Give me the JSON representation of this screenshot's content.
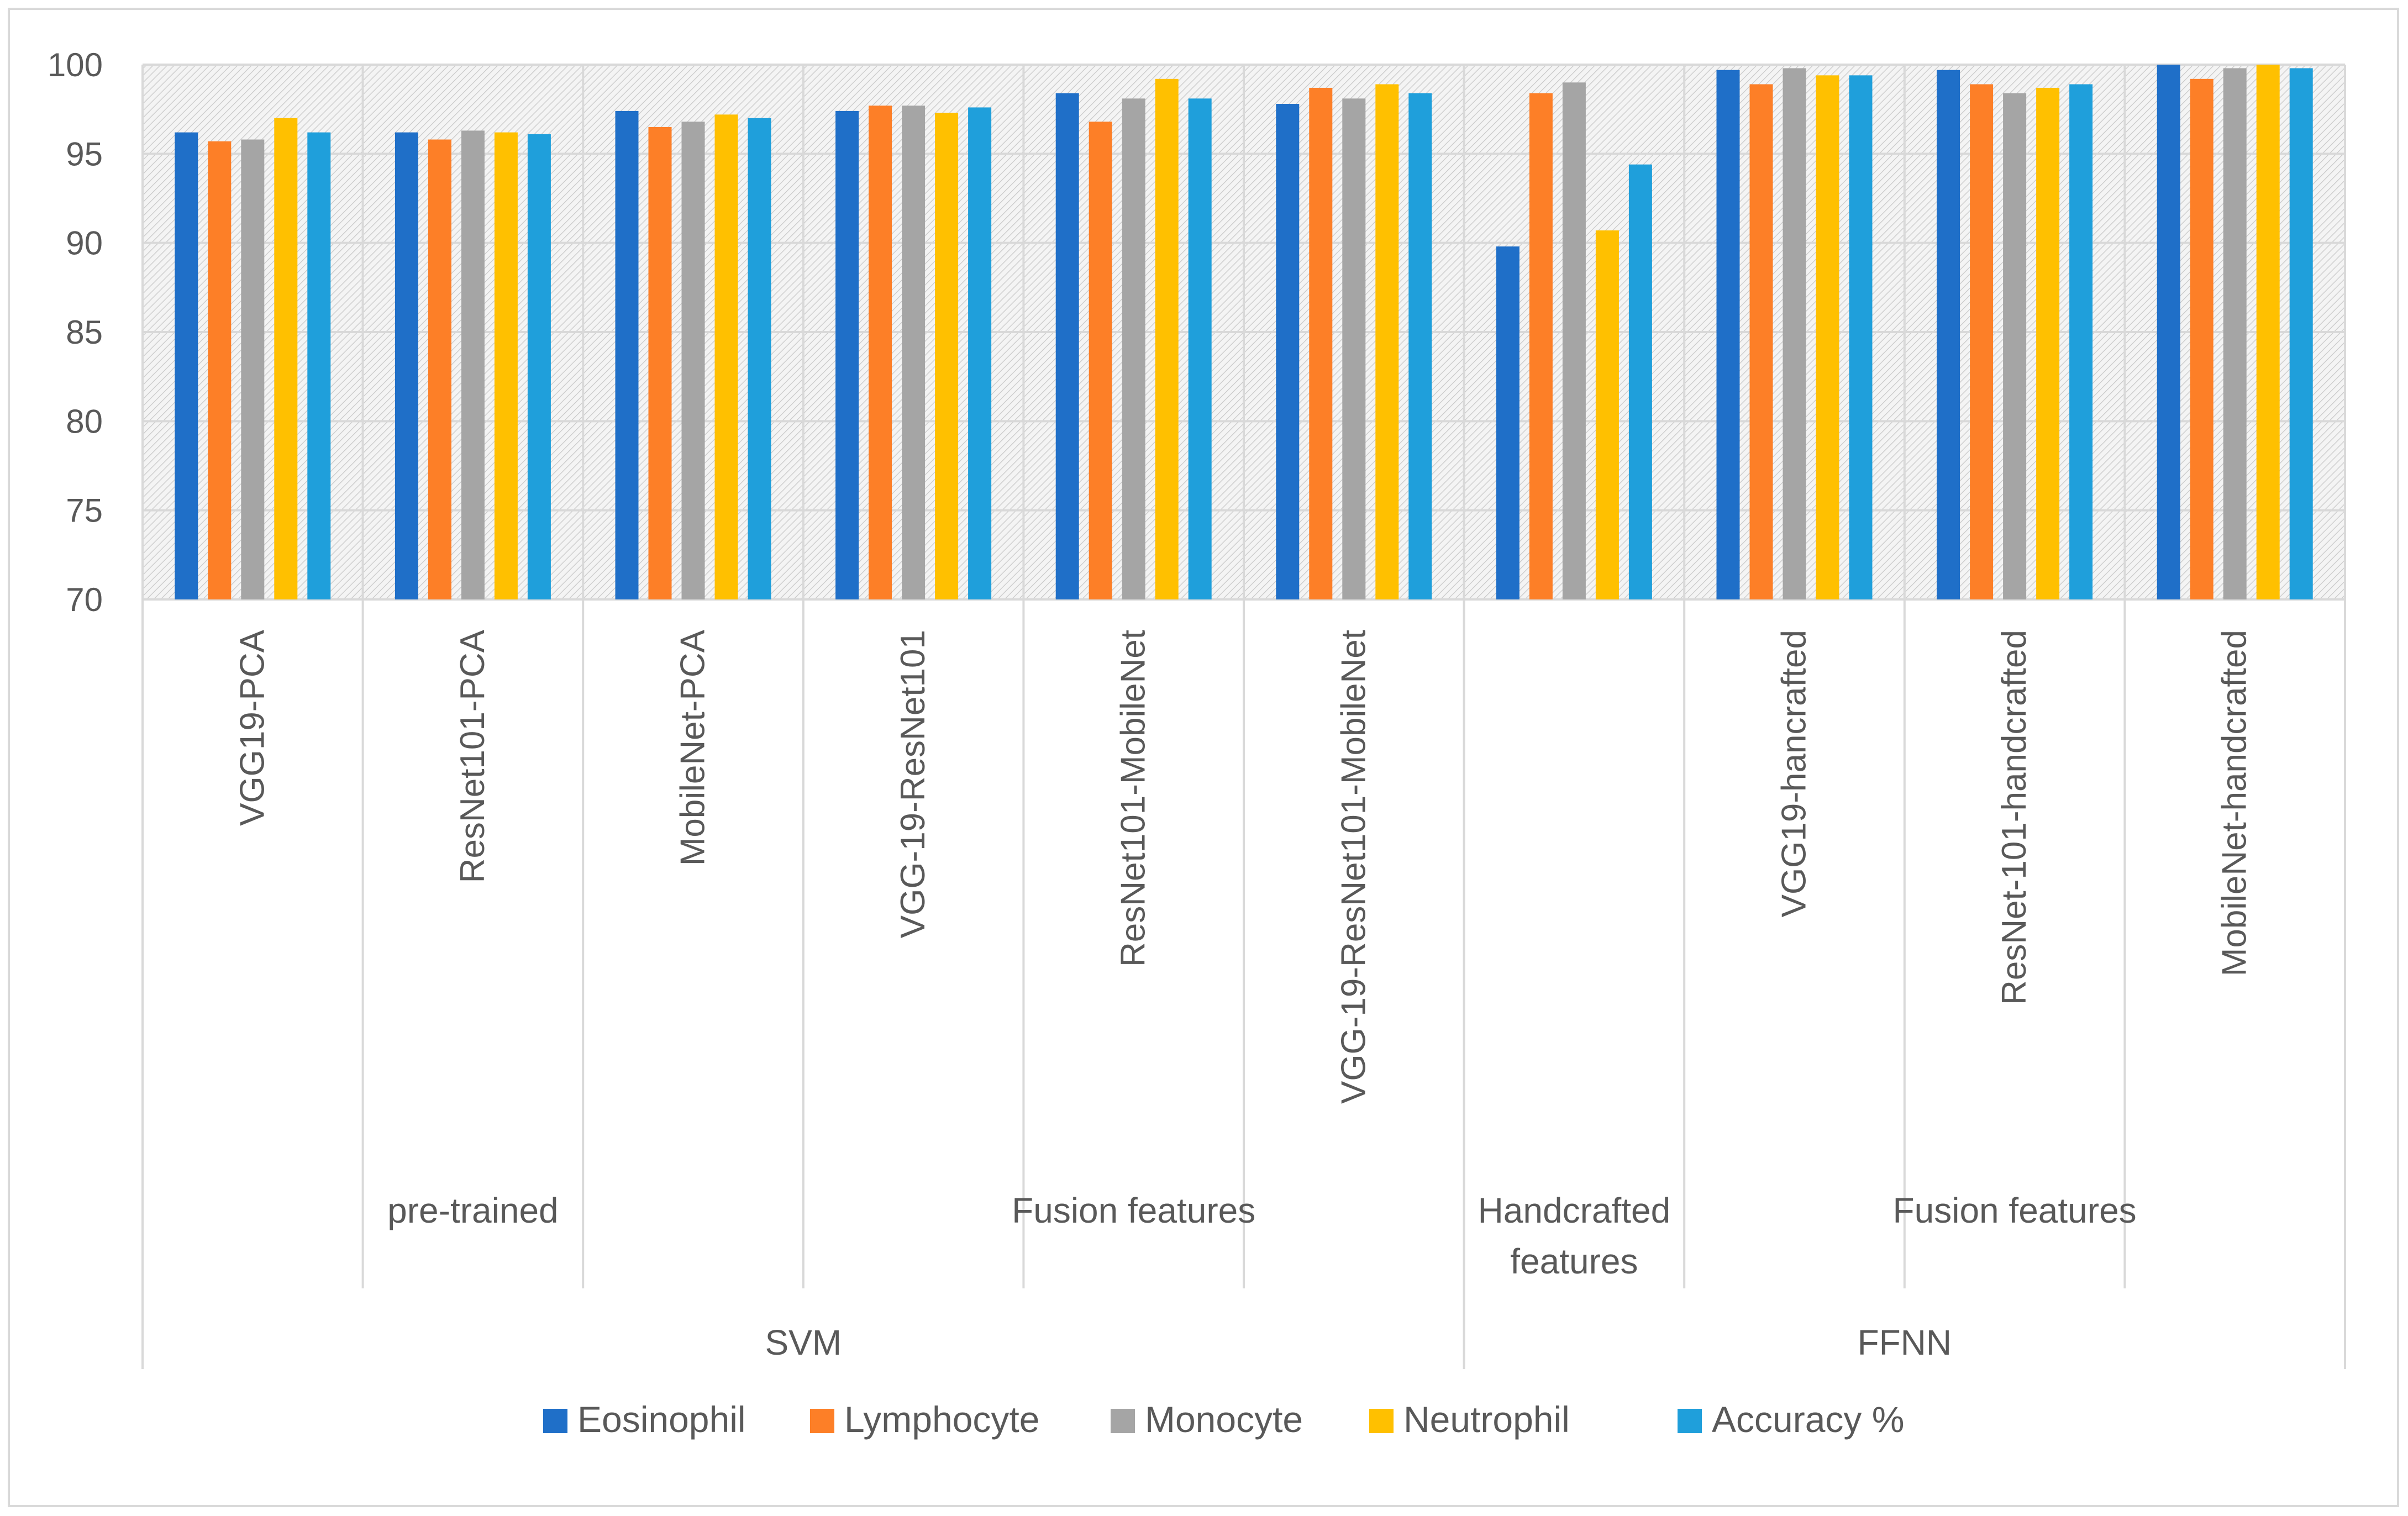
{
  "chart_data": {
    "type": "bar",
    "ylim": [
      70,
      100
    ],
    "yticks": [
      70,
      75,
      80,
      85,
      90,
      95,
      100
    ],
    "grid": true,
    "legend_position": "bottom",
    "categories": [
      "VGG19-PCA",
      "ResNet101-PCA",
      "MobileNet-PCA",
      "VGG-19-ResNet101",
      "ResNet101-MobileNet",
      "VGG-19-ResNet101-MobileNet",
      "",
      "VGG19-hancrafted",
      "ResNet-101-handcrafted",
      "MobileNet-handcrafted"
    ],
    "subgroups": [
      {
        "label": "pre-trained",
        "start": 0,
        "end": 3
      },
      {
        "label": "Fusion features",
        "start": 3,
        "end": 6
      },
      {
        "label": "Handcrafted features",
        "start": 6,
        "end": 7
      },
      {
        "label": "Fusion features",
        "start": 7,
        "end": 10
      }
    ],
    "groups": [
      {
        "label": "SVM",
        "start": 0,
        "end": 6
      },
      {
        "label": "FFNN",
        "start": 6,
        "end": 10
      }
    ],
    "series": [
      {
        "name": "Eosinophil",
        "color": "#1f6fc8",
        "values": [
          96.2,
          96.2,
          97.4,
          97.4,
          98.4,
          97.8,
          89.8,
          99.7,
          99.7,
          100
        ]
      },
      {
        "name": "Lymphocyte",
        "color": "#fd7f27",
        "values": [
          95.7,
          95.8,
          96.5,
          97.7,
          96.8,
          98.7,
          98.4,
          98.9,
          98.9,
          99.2
        ]
      },
      {
        "name": "Monocyte",
        "color": "#a5a5a5",
        "values": [
          95.8,
          96.3,
          96.8,
          97.7,
          98.1,
          98.1,
          99.0,
          99.8,
          98.4,
          99.8
        ]
      },
      {
        "name": "Neutrophil",
        "color": "#ffc000",
        "values": [
          97.0,
          96.2,
          97.2,
          97.3,
          99.2,
          98.9,
          90.7,
          99.4,
          98.7,
          100
        ]
      },
      {
        "name": "Accuracy %",
        "color": "#1f9fdb",
        "values": [
          96.2,
          96.1,
          97.0,
          97.6,
          98.1,
          98.4,
          94.4,
          99.4,
          98.9,
          99.8
        ]
      }
    ]
  }
}
